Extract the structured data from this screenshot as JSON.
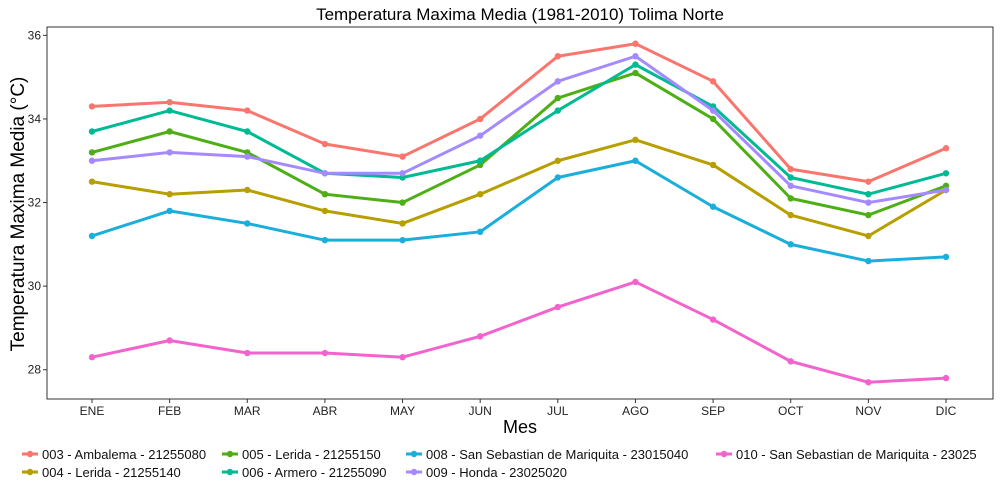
{
  "chart_data": {
    "type": "line",
    "title": "Temperatura Maxima Media (1981-2010)  Tolima Norte",
    "xlabel": "Mes",
    "ylabel": "Temperatura Maxima Media  (°C)",
    "categories": [
      "ENE",
      "FEB",
      "MAR",
      "ABR",
      "MAY",
      "JUN",
      "JUL",
      "AGO",
      "SEP",
      "OCT",
      "NOV",
      "DIC"
    ],
    "ylim": [
      27.3,
      36.2
    ],
    "yticks": [
      28,
      30,
      32,
      34,
      36
    ],
    "grid": false,
    "legend_position": "bottom",
    "series": [
      {
        "name": "003 - Ambalema - 21255080",
        "color": "#F8766D",
        "values": [
          34.3,
          34.4,
          34.2,
          33.4,
          33.1,
          34.0,
          35.5,
          35.8,
          34.9,
          32.8,
          32.5,
          33.3
        ]
      },
      {
        "name": "004 - Lerida - 21255140",
        "color": "#B79F00",
        "values": [
          32.5,
          32.2,
          32.3,
          31.8,
          31.5,
          32.2,
          33.0,
          33.5,
          32.9,
          31.7,
          31.2,
          32.3
        ]
      },
      {
        "name": "005 - Lerida - 21255150",
        "color": "#4DAF15",
        "values": [
          33.2,
          33.7,
          33.2,
          32.2,
          32.0,
          32.9,
          34.5,
          35.1,
          34.0,
          32.1,
          31.7,
          32.4
        ]
      },
      {
        "name": "006 - Armero - 21255090",
        "color": "#00BA94",
        "values": [
          33.7,
          34.2,
          33.7,
          32.7,
          32.6,
          33.0,
          34.2,
          35.3,
          34.3,
          32.6,
          32.2,
          32.7
        ]
      },
      {
        "name": "008 - San Sebastian de Mariquita - 23015040",
        "color": "#1AAEDB",
        "values": [
          31.2,
          31.8,
          31.5,
          31.1,
          31.1,
          31.3,
          32.6,
          33.0,
          31.9,
          31.0,
          30.6,
          30.7
        ]
      },
      {
        "name": "009 - Honda - 23025020",
        "color": "#A58AFF",
        "values": [
          33.0,
          33.2,
          33.1,
          32.7,
          32.7,
          33.6,
          34.9,
          35.5,
          34.2,
          32.4,
          32.0,
          32.3
        ]
      },
      {
        "name": "010 - San Sebastian de Mariquita - 23025",
        "color": "#F263CE",
        "values": [
          28.3,
          28.7,
          28.4,
          28.4,
          28.3,
          28.8,
          29.5,
          30.1,
          29.2,
          28.2,
          27.7,
          27.8
        ]
      }
    ]
  }
}
